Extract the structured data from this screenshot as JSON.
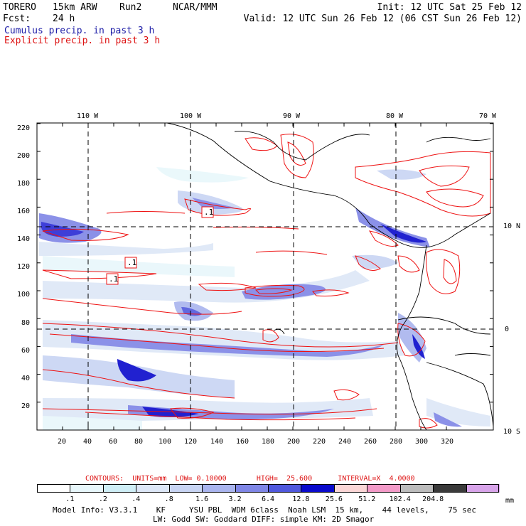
{
  "header": {
    "model": "TORERO",
    "resolution": "15km ARW",
    "run": "Run2",
    "org": "NCAR/MMM",
    "init": "Init: 12 UTC Sat 25 Feb 12",
    "fcst_label": "Fcst:",
    "fcst_value": "24 h",
    "valid": "Valid: 12 UTC Sun 26 Feb 12 (06 CST Sun 26 Feb 12)",
    "cumulus_line": "Cumulus precip. in past 3 h",
    "explicit_line": "Explicit precip. in past 3 h"
  },
  "colors": {
    "cumulus_text": "#1a1aa6",
    "explicit_text": "#dd1111",
    "contour": "#ee1111",
    "coast": "#000000"
  },
  "map": {
    "lon_labels": [
      "110 W",
      "100 W",
      "90 W",
      "80 W",
      "70 W"
    ],
    "lat_labels": [
      "10 N",
      "0",
      "10 S"
    ],
    "x_ticks": [
      "20",
      "40",
      "60",
      "80",
      "100",
      "120",
      "140",
      "160",
      "180",
      "200",
      "220",
      "240",
      "260",
      "280",
      "300",
      "320"
    ],
    "y_ticks": [
      "20",
      "40",
      "60",
      "80",
      "100",
      "120",
      "140",
      "160",
      "180",
      "200",
      "220"
    ],
    "contour_boxes": [
      ".1",
      ".1",
      ".1"
    ]
  },
  "contour_info": {
    "text": "CONTOURS:  UNITS=mm  LOW= 0.10000       HIGH=  25.600      INTERVAL=X  4.0000"
  },
  "colorbar": {
    "labels": [
      ".1",
      ".2",
      ".4",
      ".8",
      "1.6",
      "3.2",
      "6.4",
      "12.8",
      "25.6",
      "51.2",
      "102.4",
      "204.8"
    ],
    "unit": "mm",
    "colors": [
      "#ffffff",
      "#e8f7fb",
      "#cfeef6",
      "#dde7f7",
      "#c8d4f3",
      "#a9b4ee",
      "#7f86e6",
      "#5058dd",
      "#0a0acc",
      "#fbd6d6",
      "#f39ac8",
      "#bcbcbc",
      "#3a3a3a",
      "#d8a4ea"
    ]
  },
  "footer": {
    "line1": "Model Info: V3.3.1    KF     YSU PBL  WDM 6class  Noah LSM  15 km,    44 levels,    75 sec",
    "line2": "LW: Godd SW: Goddard DIFF: simple KM: 2D Smagor"
  }
}
